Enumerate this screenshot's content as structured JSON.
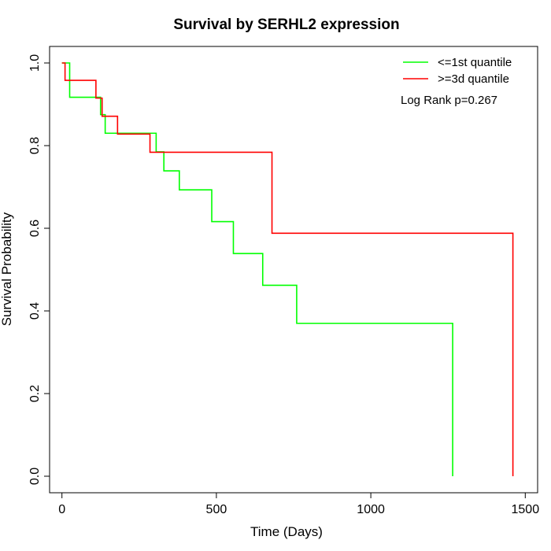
{
  "chart_data": {
    "type": "line",
    "title": "Survival by SERHL2 expression",
    "xlabel": "Time (Days)",
    "ylabel": "Survival Probability",
    "xlim": [
      -40,
      1540
    ],
    "ylim": [
      -0.04,
      1.04
    ],
    "x_ticks": [
      0,
      500,
      1000,
      1500
    ],
    "y_ticks": [
      0.0,
      0.2,
      0.4,
      0.6,
      0.8,
      1.0
    ],
    "x_tick_labels": [
      "0",
      "500",
      "1000",
      "1500"
    ],
    "y_tick_labels": [
      "0.0",
      "0.2",
      "0.4",
      "0.6",
      "0.8",
      "1.0"
    ],
    "grid": false,
    "legend_position": "top-right",
    "annotation": "Log Rank p=0.267",
    "series": [
      {
        "name": "<=1st quantile",
        "color": "#00ff00",
        "step_x": [
          0,
          25,
          125,
          140,
          305,
          330,
          380,
          485,
          555,
          650,
          760,
          1265
        ],
        "step_y": [
          1.0,
          0.917,
          0.875,
          0.83,
          0.785,
          0.739,
          0.693,
          0.616,
          0.539,
          0.462,
          0.37,
          0.0
        ]
      },
      {
        "name": ">=3d quantile",
        "color": "#ff0000",
        "step_x": [
          0,
          10,
          110,
          130,
          180,
          285,
          680,
          1460
        ],
        "step_y": [
          1.0,
          0.958,
          0.915,
          0.871,
          0.828,
          0.784,
          0.588,
          0.0
        ]
      }
    ]
  }
}
